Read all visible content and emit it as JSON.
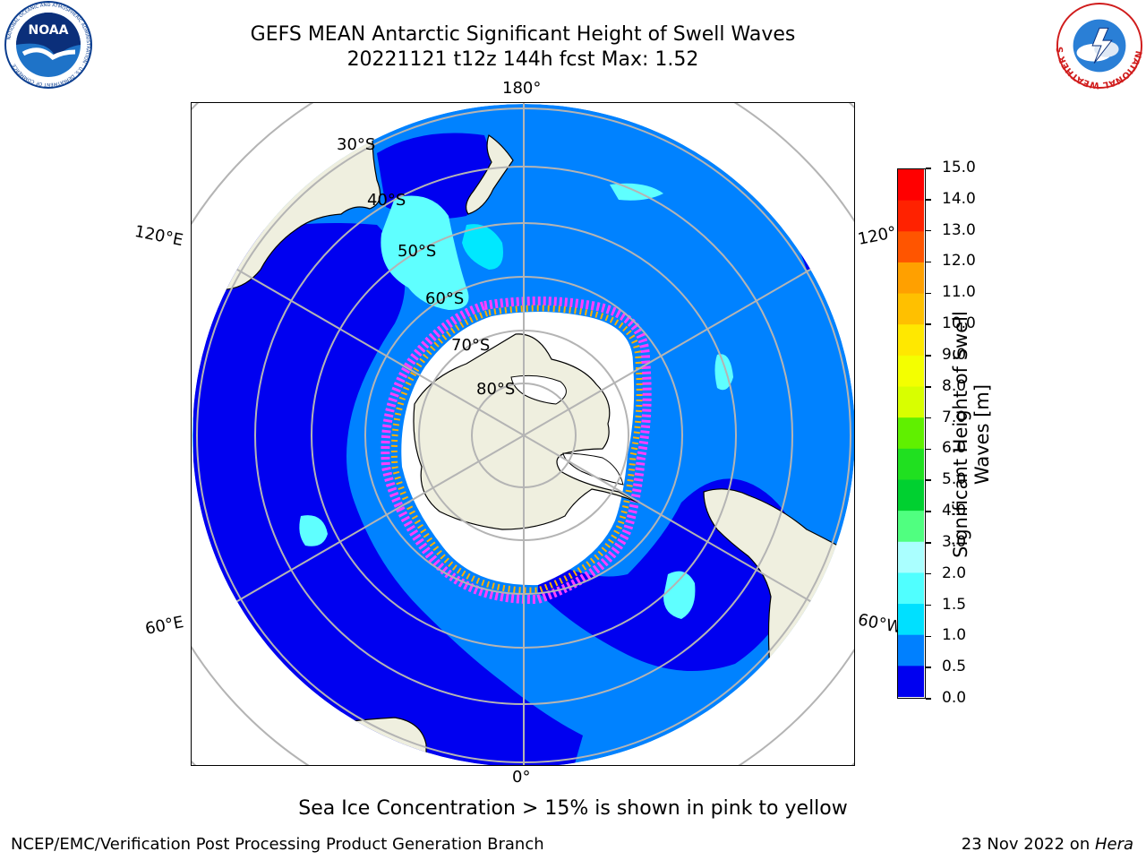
{
  "header": {
    "title_line1": "GEFS MEAN Antarctic Significant Height of Swell Waves",
    "title_line2": "20221121 t12z 144h fcst   Max: 1.52"
  },
  "logos": {
    "noaa_text": "NOAA",
    "noaa_ring_text": "NATIONAL OCEANIC AND ATMOSPHERIC ADMINISTRATION · U.S. DEPARTMENT OF COMMERCE",
    "nws_ring_text": "NATIONAL WEATHER SERVICE"
  },
  "map": {
    "projection": "south-polar-stereographic",
    "longitude_labels": [
      "180°",
      "120°E",
      "120°",
      "60°E",
      "60°W",
      "0°"
    ],
    "latitude_labels": [
      "30°S",
      "40°S",
      "50°S",
      "60°S",
      "70°S",
      "80°S"
    ],
    "colors": {
      "land": "#efefdf",
      "ocean_low": "#0000f0",
      "ocean_mid": "#0082ff",
      "swell_1p5": "#00e8ff",
      "swell_2p0": "#5fffff",
      "sea_ice_edge_pink": "#ff40ff",
      "sea_ice_edge_orange": "#ffb000",
      "sea_ice_white": "#ffffff",
      "graticule": "#b4b4b4"
    }
  },
  "colorbar": {
    "label": "Significant Height of Swell Waves [m]",
    "label_line1": "Significant Height of Swell",
    "label_line2": "Waves [m]",
    "ticks": [
      "15.0",
      "14.0",
      "13.0",
      "12.0",
      "11.0",
      "10.0",
      "9.0",
      "8.0",
      "7.0",
      "6.0",
      "5.0",
      "4.0",
      "3.0",
      "2.0",
      "1.5",
      "1.0",
      "0.5",
      "0.0"
    ],
    "bin_colors_top_to_bottom": [
      "#ff0000",
      "#ff2200",
      "#ff5500",
      "#ff8000",
      "#ffa000",
      "#ffc000",
      "#ffe800",
      "#f4ff00",
      "#d8ff00",
      "#b2ff00",
      "#60f000",
      "#20e020",
      "#00d030",
      "#50ff80",
      "#aaffff",
      "#50ffff",
      "#00ffff",
      "#00e0ff",
      "#0080ff",
      "#0000f0"
    ]
  },
  "note": "Sea Ice Concentration > 15% is shown in pink to yellow",
  "footer": {
    "left": "NCEP/EMC/Verification Post Processing Product Generation Branch",
    "right_prefix": "23 Nov 2022 on ",
    "right_host": "Hera"
  }
}
